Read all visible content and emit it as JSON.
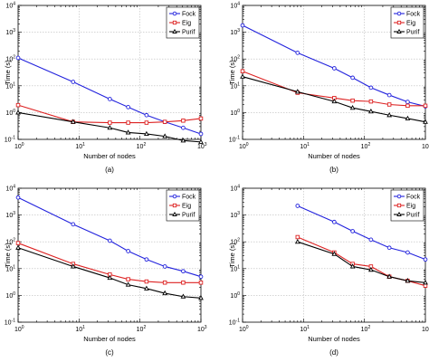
{
  "chart_data": [
    {
      "type": "line",
      "caption": "(a)",
      "xlabel": "Number of nodes",
      "ylabel": "Time (s)",
      "xscale": "log",
      "yscale": "log",
      "xlim": [
        1,
        1000
      ],
      "ylim": [
        0.1,
        10000
      ],
      "x_ticks": [
        1,
        10,
        100,
        1000
      ],
      "y_ticks": [
        0.1,
        1,
        10,
        100,
        1000,
        10000
      ],
      "grid": true,
      "legend": "top-right",
      "series": [
        {
          "name": "Fock",
          "color": "#2222dd",
          "marker": "circle",
          "x": [
            1,
            8,
            32,
            64,
            128,
            256,
            512,
            1000
          ],
          "y": [
            110,
            14,
            3.2,
            1.6,
            0.8,
            0.45,
            0.27,
            0.16
          ]
        },
        {
          "name": "Eig",
          "color": "#dd2222",
          "marker": "square",
          "x": [
            1,
            8,
            32,
            64,
            128,
            256,
            512,
            1000
          ],
          "y": [
            1.9,
            0.45,
            0.42,
            0.42,
            0.42,
            0.45,
            0.5,
            0.6
          ]
        },
        {
          "name": "Purif",
          "color": "#000000",
          "marker": "triangle",
          "x": [
            1,
            8,
            32,
            64,
            128,
            256,
            512,
            1000
          ],
          "y": [
            1.0,
            0.45,
            0.27,
            0.18,
            0.16,
            0.13,
            0.09,
            0.08
          ]
        }
      ]
    },
    {
      "type": "line",
      "caption": "(b)",
      "xlabel": "Number of nodes",
      "ylabel": "Time (s)",
      "xscale": "log",
      "yscale": "log",
      "xlim": [
        1,
        1000
      ],
      "ylim": [
        0.1,
        10000
      ],
      "x_ticks": [
        1,
        10,
        100,
        1000
      ],
      "y_ticks": [
        0.1,
        1,
        10,
        100,
        1000,
        10000
      ],
      "grid": true,
      "legend": "top-right",
      "series": [
        {
          "name": "Fock",
          "color": "#2222dd",
          "marker": "circle",
          "x": [
            1,
            8,
            32,
            64,
            128,
            256,
            512,
            1000
          ],
          "y": [
            1800,
            170,
            45,
            20,
            8.5,
            4.5,
            2.5,
            1.7
          ]
        },
        {
          "name": "Eig",
          "color": "#dd2222",
          "marker": "square",
          "x": [
            1,
            8,
            32,
            64,
            128,
            256,
            512,
            1000
          ],
          "y": [
            35,
            5.5,
            3.5,
            2.8,
            2.6,
            2.0,
            1.8,
            1.8
          ]
        },
        {
          "name": "Purif",
          "color": "#000000",
          "marker": "triangle",
          "x": [
            1,
            8,
            32,
            64,
            128,
            256,
            512,
            1000
          ],
          "y": [
            22,
            6.0,
            2.6,
            1.5,
            1.1,
            0.8,
            0.6,
            0.45
          ]
        }
      ]
    },
    {
      "type": "line",
      "caption": "(c)",
      "xlabel": "Number of nodes",
      "ylabel": "Time (s)",
      "xscale": "log",
      "yscale": "log",
      "xlim": [
        1,
        1000
      ],
      "ylim": [
        0.1,
        10000
      ],
      "x_ticks": [
        1,
        10,
        100,
        1000
      ],
      "y_ticks": [
        0.1,
        1,
        10,
        100,
        1000,
        10000
      ],
      "grid": true,
      "legend": "top-right",
      "series": [
        {
          "name": "Fock",
          "color": "#2222dd",
          "marker": "circle",
          "x": [
            1,
            8,
            32,
            64,
            128,
            256,
            512,
            1000
          ],
          "y": [
            4500,
            450,
            110,
            45,
            22,
            12,
            8,
            5
          ]
        },
        {
          "name": "Eig",
          "color": "#dd2222",
          "marker": "square",
          "x": [
            1,
            8,
            32,
            64,
            128,
            256,
            512,
            1000
          ],
          "y": [
            90,
            15,
            6.0,
            4.0,
            3.3,
            3.0,
            3.0,
            3.0
          ]
        },
        {
          "name": "Purif",
          "color": "#000000",
          "marker": "triangle",
          "x": [
            1,
            8,
            32,
            64,
            128,
            256,
            512,
            1000
          ],
          "y": [
            60,
            12,
            4.5,
            2.5,
            1.8,
            1.2,
            0.9,
            0.8
          ]
        }
      ]
    },
    {
      "type": "line",
      "caption": "(d)",
      "xlabel": "Number of nodes",
      "ylabel": "Time (s)",
      "xscale": "log",
      "yscale": "log",
      "xlim": [
        1,
        1000
      ],
      "ylim": [
        0.1,
        10000
      ],
      "x_ticks": [
        1,
        10,
        100,
        1000
      ],
      "y_ticks": [
        0.1,
        1,
        10,
        100,
        1000,
        10000
      ],
      "grid": true,
      "legend": "top-right",
      "series": [
        {
          "name": "Fock",
          "color": "#2222dd",
          "marker": "circle",
          "x": [
            8,
            32,
            64,
            128,
            256,
            512,
            1000
          ],
          "y": [
            2200,
            550,
            250,
            120,
            60,
            40,
            22
          ]
        },
        {
          "name": "Eig",
          "color": "#dd2222",
          "marker": "square",
          "x": [
            8,
            32,
            64,
            128,
            256,
            512,
            1000
          ],
          "y": [
            150,
            40,
            15,
            12,
            5,
            3.5,
            2.3
          ]
        },
        {
          "name": "Purif",
          "color": "#000000",
          "marker": "triangle",
          "x": [
            8,
            32,
            64,
            128,
            256,
            512,
            1000
          ],
          "y": [
            100,
            35,
            12,
            9,
            5,
            3.5,
            3
          ]
        }
      ]
    }
  ]
}
